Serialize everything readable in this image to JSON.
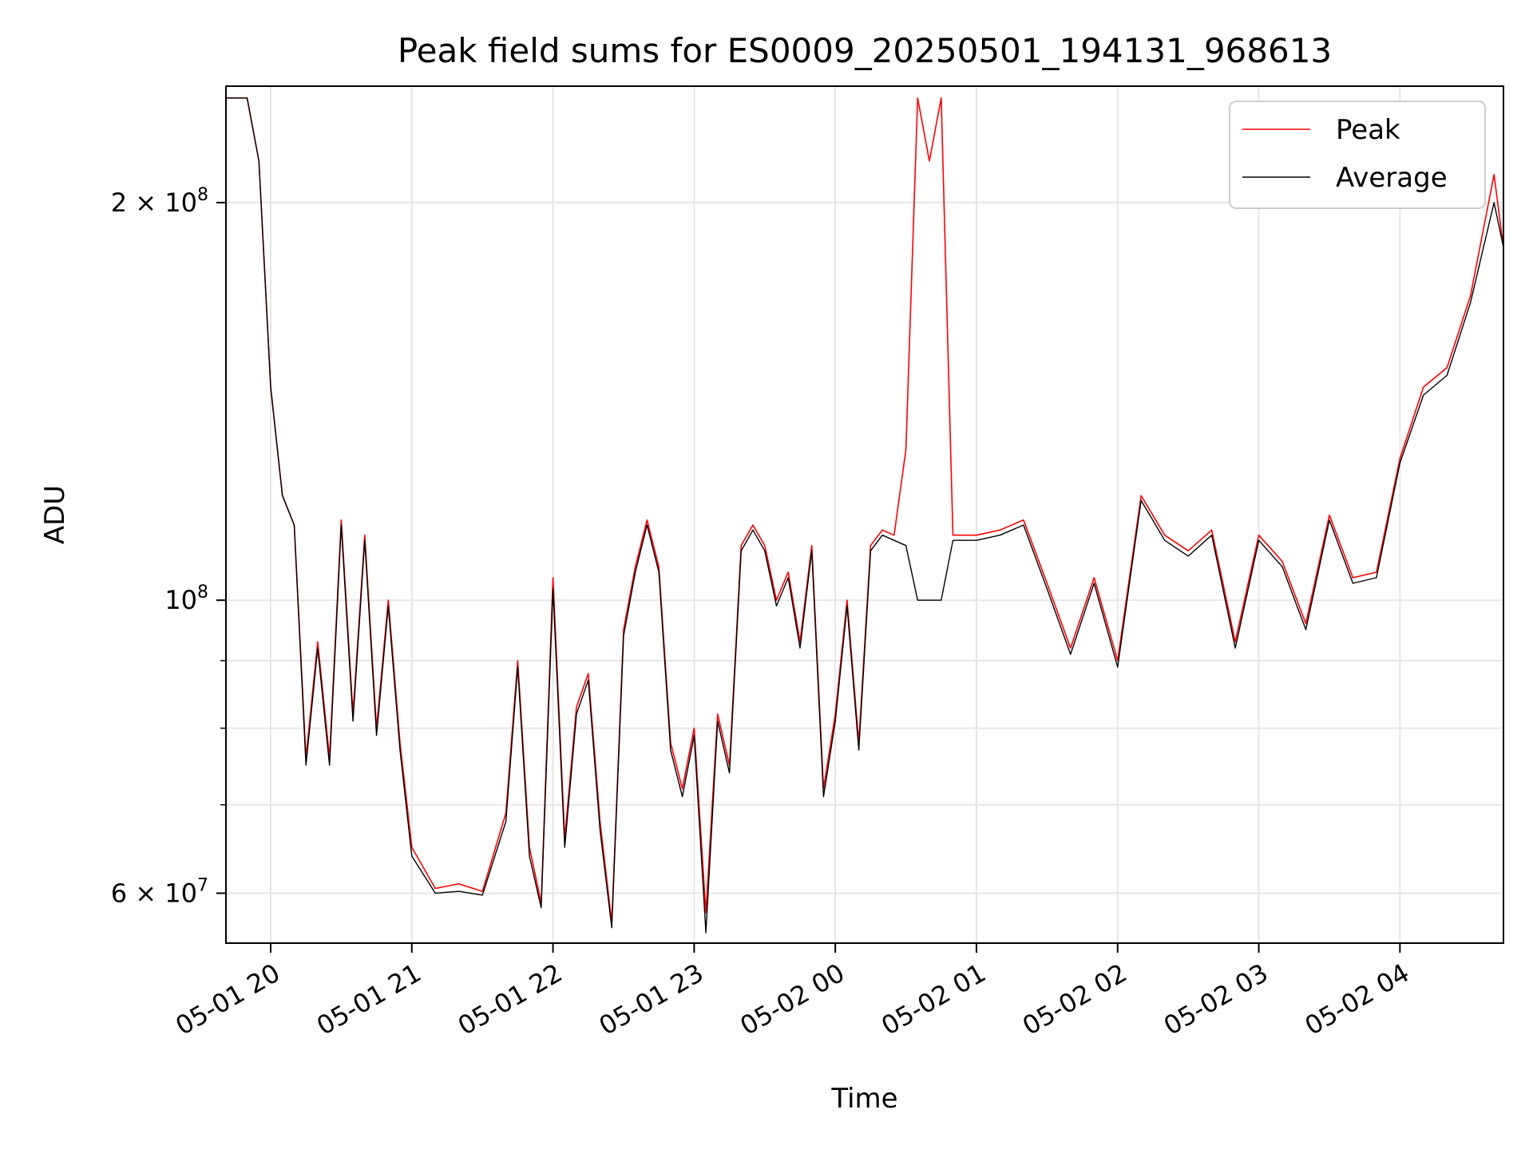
{
  "chart_data": {
    "type": "line",
    "title": "Peak field sums for ES0009_20250501_194131_968613",
    "xlabel": "Time",
    "ylabel": "ADU",
    "y_scale": "log",
    "xlim": [
      "2025-05-01 19:41",
      "2025-05-02 04:44"
    ],
    "ylim": [
      55000000,
      245000000
    ],
    "grid": true,
    "legend": "top-right",
    "x_tick_labels": [
      "05-01 20",
      "05-01 21",
      "05-01 22",
      "05-01 23",
      "05-02 00",
      "05-02 01",
      "05-02 02",
      "05-02 03",
      "05-02 04"
    ],
    "y_tick_labels": [
      {
        "value": 60000000,
        "base": "6",
        "sup": "7",
        "prefix": "6 × 10"
      },
      {
        "value": 100000000,
        "base": "",
        "sup": "8",
        "prefix": "10"
      },
      {
        "value": 200000000,
        "base": "2",
        "sup": "8",
        "prefix": "2 × 10"
      }
    ],
    "x": [
      "2025-05-01 19:41",
      "2025-05-01 19:50",
      "2025-05-01 19:55",
      "2025-05-01 20:00",
      "2025-05-01 20:05",
      "2025-05-01 20:10",
      "2025-05-01 20:15",
      "2025-05-01 20:20",
      "2025-05-01 20:25",
      "2025-05-01 20:30",
      "2025-05-01 20:35",
      "2025-05-01 20:40",
      "2025-05-01 20:45",
      "2025-05-01 20:50",
      "2025-05-01 20:55",
      "2025-05-01 21:00",
      "2025-05-01 21:10",
      "2025-05-01 21:20",
      "2025-05-01 21:30",
      "2025-05-01 21:40",
      "2025-05-01 21:45",
      "2025-05-01 21:50",
      "2025-05-01 21:55",
      "2025-05-01 22:00",
      "2025-05-01 22:05",
      "2025-05-01 22:10",
      "2025-05-01 22:15",
      "2025-05-01 22:20",
      "2025-05-01 22:25",
      "2025-05-01 22:30",
      "2025-05-01 22:35",
      "2025-05-01 22:40",
      "2025-05-01 22:45",
      "2025-05-01 22:50",
      "2025-05-01 22:55",
      "2025-05-01 23:00",
      "2025-05-01 23:05",
      "2025-05-01 23:10",
      "2025-05-01 23:15",
      "2025-05-01 23:20",
      "2025-05-01 23:25",
      "2025-05-01 23:30",
      "2025-05-01 23:35",
      "2025-05-01 23:40",
      "2025-05-01 23:45",
      "2025-05-01 23:50",
      "2025-05-01 23:55",
      "2025-05-02 00:00",
      "2025-05-02 00:05",
      "2025-05-02 00:10",
      "2025-05-02 00:15",
      "2025-05-02 00:20",
      "2025-05-02 00:25",
      "2025-05-02 00:30",
      "2025-05-02 00:35",
      "2025-05-02 00:40",
      "2025-05-02 00:45",
      "2025-05-02 00:50",
      "2025-05-02 00:55",
      "2025-05-02 01:00",
      "2025-05-02 01:10",
      "2025-05-02 01:20",
      "2025-05-02 01:30",
      "2025-05-02 01:40",
      "2025-05-02 01:50",
      "2025-05-02 02:00",
      "2025-05-02 02:10",
      "2025-05-02 02:20",
      "2025-05-02 02:30",
      "2025-05-02 02:40",
      "2025-05-02 02:50",
      "2025-05-02 03:00",
      "2025-05-02 03:10",
      "2025-05-02 03:20",
      "2025-05-02 03:30",
      "2025-05-02 03:40",
      "2025-05-02 03:50",
      "2025-05-02 04:00",
      "2025-05-02 04:10",
      "2025-05-02 04:20",
      "2025-05-02 04:30",
      "2025-05-02 04:40",
      "2025-05-02 04:44"
    ],
    "series": [
      {
        "name": "Peak",
        "color": "#ff0000",
        "values": [
          240000000,
          240000000,
          215000000,
          145000000,
          120000000,
          114000000,
          76000000,
          93000000,
          76000000,
          115000000,
          82000000,
          112000000,
          80000000,
          100000000,
          78000000,
          65000000,
          60500000,
          61000000,
          60200000,
          69000000,
          90000000,
          65000000,
          59000000,
          104000000,
          66000000,
          83000000,
          88000000,
          68000000,
          57000000,
          95000000,
          106000000,
          115000000,
          106000000,
          78000000,
          72000000,
          80000000,
          58000000,
          82000000,
          75000000,
          110000000,
          114000000,
          110000000,
          100000000,
          105000000,
          93000000,
          110000000,
          72000000,
          82000000,
          100000000,
          78000000,
          110000000,
          113000000,
          112000000,
          130000000,
          240000000,
          215000000,
          240000000,
          112000000,
          112000000,
          112000000,
          113000000,
          115000000,
          103000000,
          92000000,
          104000000,
          90000000,
          120000000,
          112000000,
          109000000,
          113000000,
          93000000,
          112000000,
          107000000,
          96000000,
          116000000,
          104000000,
          105000000,
          128000000,
          145000000,
          150000000,
          170000000,
          210000000,
          185000000
        ]
      },
      {
        "name": "Average",
        "color": "#000000",
        "values": [
          240000000,
          240000000,
          215000000,
          145000000,
          120000000,
          114000000,
          75000000,
          92000000,
          75000000,
          114000000,
          81000000,
          111000000,
          79000000,
          99000000,
          77000000,
          64000000,
          60000000,
          60200000,
          59800000,
          68000000,
          89000000,
          64000000,
          58500000,
          102000000,
          65000000,
          82000000,
          87000000,
          67000000,
          56500000,
          94000000,
          105000000,
          114000000,
          105000000,
          77000000,
          71000000,
          79000000,
          56000000,
          81000000,
          74000000,
          109000000,
          113000000,
          109000000,
          99000000,
          104000000,
          92000000,
          109000000,
          71000000,
          81000000,
          99000000,
          77000000,
          109000000,
          112000000,
          111000000,
          110000000,
          100000000,
          100000000,
          100000000,
          111000000,
          111000000,
          111000000,
          112000000,
          114000000,
          102000000,
          91000000,
          103000000,
          89000000,
          119000000,
          111000000,
          108000000,
          112000000,
          92000000,
          111000000,
          106000000,
          95000000,
          115000000,
          103000000,
          104000000,
          127000000,
          143000000,
          148000000,
          168000000,
          200000000,
          185000000
        ]
      }
    ]
  }
}
